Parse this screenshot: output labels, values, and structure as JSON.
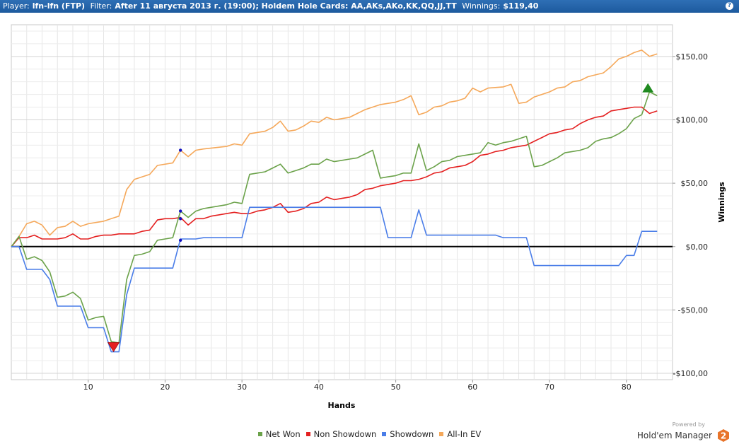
{
  "header": {
    "player_label": "Player:",
    "player_value": "lfn-lfn (FTP)",
    "filter_label": "Filter:",
    "filter_value": "After 11 августа 2013 г. (19:00); Holdem Hole Cards: AA,AKs,AKo,KK,QQ,JJ,TT",
    "winnings_label": "Winnings:",
    "winnings_value": "$119,40",
    "help": "?"
  },
  "chart_data": {
    "type": "line",
    "xlabel": "Hands",
    "ylabel": "Winnings",
    "xlim": [
      0,
      86
    ],
    "ylim": [
      -105,
      175
    ],
    "x_ticks": [
      10,
      20,
      30,
      40,
      50,
      60,
      70,
      80
    ],
    "y_ticks": [
      {
        "value": 150,
        "label": "$150,00"
      },
      {
        "value": 100,
        "label": "$100,00"
      },
      {
        "value": 50,
        "label": "$50,00"
      },
      {
        "value": 0,
        "label": "$0,00"
      },
      {
        "value": -50,
        "label": "-$50,00"
      },
      {
        "value": -100,
        "label": "-$100,00"
      }
    ],
    "grid": true,
    "legend_position": "bottom",
    "series": [
      {
        "name": "All-In EV",
        "color": "#f5a85a",
        "points": [
          [
            0,
            0
          ],
          [
            1,
            8
          ],
          [
            2,
            18
          ],
          [
            3,
            20
          ],
          [
            4,
            17
          ],
          [
            5,
            9
          ],
          [
            6,
            15
          ],
          [
            7,
            16
          ],
          [
            8,
            20
          ],
          [
            9,
            16
          ],
          [
            10,
            18
          ],
          [
            12,
            20
          ],
          [
            13,
            22
          ],
          [
            14,
            24
          ],
          [
            15,
            45
          ],
          [
            16,
            53
          ],
          [
            18,
            57
          ],
          [
            19,
            64
          ],
          [
            21,
            66
          ],
          [
            22,
            76
          ],
          [
            23,
            71
          ],
          [
            24,
            76
          ],
          [
            25,
            77
          ],
          [
            28,
            79
          ],
          [
            29,
            81
          ],
          [
            30,
            80
          ],
          [
            31,
            89
          ],
          [
            33,
            91
          ],
          [
            34,
            94
          ],
          [
            35,
            99
          ],
          [
            36,
            91
          ],
          [
            37,
            92
          ],
          [
            38,
            95
          ],
          [
            39,
            99
          ],
          [
            40,
            98
          ],
          [
            41,
            102
          ],
          [
            42,
            100
          ],
          [
            44,
            102
          ],
          [
            45,
            105
          ],
          [
            46,
            108
          ],
          [
            47,
            110
          ],
          [
            48,
            112
          ],
          [
            50,
            114
          ],
          [
            51,
            116
          ],
          [
            52,
            119
          ],
          [
            53,
            104
          ],
          [
            54,
            106
          ],
          [
            55,
            110
          ],
          [
            56,
            111
          ],
          [
            57,
            114
          ],
          [
            58,
            115
          ],
          [
            59,
            117
          ],
          [
            60,
            125
          ],
          [
            61,
            122
          ],
          [
            62,
            125
          ],
          [
            64,
            126
          ],
          [
            65,
            128
          ],
          [
            66,
            113
          ],
          [
            67,
            114
          ],
          [
            68,
            118
          ],
          [
            70,
            122
          ],
          [
            71,
            125
          ],
          [
            72,
            126
          ],
          [
            73,
            130
          ],
          [
            74,
            131
          ],
          [
            75,
            134
          ],
          [
            77,
            137
          ],
          [
            78,
            142
          ],
          [
            79,
            148
          ],
          [
            80,
            150
          ],
          [
            81,
            153
          ],
          [
            82,
            155
          ],
          [
            83,
            150
          ],
          [
            84,
            152
          ]
        ]
      },
      {
        "name": "Non Showdown",
        "color": "#e42020",
        "points": [
          [
            0,
            0
          ],
          [
            1,
            7
          ],
          [
            2,
            7
          ],
          [
            3,
            9
          ],
          [
            4,
            6
          ],
          [
            5,
            6
          ],
          [
            6,
            6
          ],
          [
            7,
            7
          ],
          [
            8,
            10
          ],
          [
            9,
            6
          ],
          [
            10,
            6
          ],
          [
            11,
            8
          ],
          [
            12,
            9
          ],
          [
            13,
            9
          ],
          [
            14,
            10
          ],
          [
            15,
            10
          ],
          [
            16,
            10
          ],
          [
            17,
            12
          ],
          [
            18,
            13
          ],
          [
            19,
            21
          ],
          [
            20,
            22
          ],
          [
            21,
            22
          ],
          [
            22,
            23
          ],
          [
            23,
            17
          ],
          [
            24,
            22
          ],
          [
            25,
            22
          ],
          [
            26,
            24
          ],
          [
            27,
            25
          ],
          [
            28,
            26
          ],
          [
            29,
            27
          ],
          [
            30,
            26
          ],
          [
            31,
            26
          ],
          [
            32,
            28
          ],
          [
            33,
            29
          ],
          [
            34,
            31
          ],
          [
            35,
            34
          ],
          [
            36,
            27
          ],
          [
            37,
            28
          ],
          [
            38,
            30
          ],
          [
            39,
            34
          ],
          [
            40,
            35
          ],
          [
            41,
            39
          ],
          [
            42,
            37
          ],
          [
            43,
            38
          ],
          [
            44,
            39
          ],
          [
            45,
            41
          ],
          [
            46,
            45
          ],
          [
            47,
            46
          ],
          [
            48,
            48
          ],
          [
            49,
            49
          ],
          [
            50,
            50
          ],
          [
            51,
            52
          ],
          [
            52,
            52
          ],
          [
            53,
            53
          ],
          [
            54,
            55
          ],
          [
            55,
            58
          ],
          [
            56,
            59
          ],
          [
            57,
            62
          ],
          [
            58,
            63
          ],
          [
            59,
            64
          ],
          [
            60,
            67
          ],
          [
            61,
            72
          ],
          [
            62,
            73
          ],
          [
            63,
            75
          ],
          [
            64,
            76
          ],
          [
            65,
            78
          ],
          [
            66,
            79
          ],
          [
            67,
            80
          ],
          [
            68,
            83
          ],
          [
            69,
            86
          ],
          [
            70,
            89
          ],
          [
            71,
            90
          ],
          [
            72,
            92
          ],
          [
            73,
            93
          ],
          [
            74,
            97
          ],
          [
            75,
            100
          ],
          [
            76,
            102
          ],
          [
            77,
            103
          ],
          [
            78,
            107
          ],
          [
            79,
            108
          ],
          [
            80,
            109
          ],
          [
            81,
            110
          ],
          [
            82,
            110
          ],
          [
            83,
            105
          ],
          [
            84,
            107
          ]
        ]
      },
      {
        "name": "Net Won",
        "color": "#6ba24a",
        "points": [
          [
            0,
            0
          ],
          [
            1,
            8
          ],
          [
            2,
            -10
          ],
          [
            3,
            -8
          ],
          [
            4,
            -11
          ],
          [
            5,
            -20
          ],
          [
            6,
            -40
          ],
          [
            7,
            -39
          ],
          [
            8,
            -36
          ],
          [
            9,
            -41
          ],
          [
            10,
            -58
          ],
          [
            11,
            -56
          ],
          [
            12,
            -55
          ],
          [
            13,
            -75
          ],
          [
            14,
            -76
          ],
          [
            15,
            -26
          ],
          [
            16,
            -7
          ],
          [
            17,
            -6
          ],
          [
            18,
            -4
          ],
          [
            19,
            5
          ],
          [
            20,
            6
          ],
          [
            21,
            7
          ],
          [
            22,
            28
          ],
          [
            23,
            23
          ],
          [
            24,
            28
          ],
          [
            25,
            30
          ],
          [
            26,
            31
          ],
          [
            28,
            33
          ],
          [
            29,
            35
          ],
          [
            30,
            34
          ],
          [
            31,
            57
          ],
          [
            32,
            58
          ],
          [
            33,
            59
          ],
          [
            34,
            62
          ],
          [
            35,
            65
          ],
          [
            36,
            58
          ],
          [
            37,
            60
          ],
          [
            38,
            62
          ],
          [
            39,
            65
          ],
          [
            40,
            65
          ],
          [
            41,
            69
          ],
          [
            42,
            67
          ],
          [
            43,
            68
          ],
          [
            44,
            69
          ],
          [
            45,
            70
          ],
          [
            46,
            73
          ],
          [
            47,
            76
          ],
          [
            48,
            54
          ],
          [
            49,
            55
          ],
          [
            50,
            56
          ],
          [
            51,
            58
          ],
          [
            52,
            58
          ],
          [
            53,
            81
          ],
          [
            54,
            60
          ],
          [
            55,
            63
          ],
          [
            56,
            67
          ],
          [
            57,
            68
          ],
          [
            58,
            71
          ],
          [
            59,
            72
          ],
          [
            60,
            73
          ],
          [
            61,
            74
          ],
          [
            62,
            82
          ],
          [
            63,
            80
          ],
          [
            64,
            82
          ],
          [
            65,
            83
          ],
          [
            66,
            85
          ],
          [
            67,
            87
          ],
          [
            68,
            63
          ],
          [
            69,
            64
          ],
          [
            70,
            67
          ],
          [
            71,
            70
          ],
          [
            72,
            74
          ],
          [
            73,
            75
          ],
          [
            74,
            76
          ],
          [
            75,
            78
          ],
          [
            76,
            83
          ],
          [
            77,
            85
          ],
          [
            78,
            86
          ],
          [
            79,
            89
          ],
          [
            80,
            93
          ],
          [
            81,
            101
          ],
          [
            82,
            104
          ],
          [
            83,
            122
          ],
          [
            84,
            119
          ]
        ]
      },
      {
        "name": "Showdown",
        "color": "#4a7de8",
        "points": [
          [
            0,
            0
          ],
          [
            1,
            0
          ],
          [
            2,
            -18
          ],
          [
            4,
            -18
          ],
          [
            5,
            -26
          ],
          [
            6,
            -47
          ],
          [
            9,
            -47
          ],
          [
            10,
            -64
          ],
          [
            12,
            -64
          ],
          [
            13,
            -83
          ],
          [
            14,
            -83
          ],
          [
            15,
            -38
          ],
          [
            16,
            -17
          ],
          [
            21,
            -17
          ],
          [
            22,
            6
          ],
          [
            24,
            6
          ],
          [
            25,
            7
          ],
          [
            30,
            7
          ],
          [
            31,
            31
          ],
          [
            48,
            31
          ],
          [
            49,
            7
          ],
          [
            52,
            7
          ],
          [
            53,
            29
          ],
          [
            54,
            9
          ],
          [
            63,
            9
          ],
          [
            64,
            7
          ],
          [
            67,
            7
          ],
          [
            68,
            -15
          ],
          [
            79,
            -15
          ],
          [
            80,
            -7
          ],
          [
            81,
            -7
          ],
          [
            82,
            12
          ],
          [
            84,
            12
          ]
        ]
      }
    ],
    "markers": {
      "high": {
        "x": 82.8,
        "y": 125,
        "color": "#1f8a1f"
      },
      "low": {
        "x": 13.3,
        "y": -79,
        "color": "#e62020"
      },
      "dots": [
        {
          "x": 22,
          "y": 76
        },
        {
          "x": 22,
          "y": 28
        },
        {
          "x": 22,
          "y": 22
        },
        {
          "x": 22,
          "y": 5
        }
      ]
    }
  },
  "footer": {
    "powered": "Powered by",
    "brand": "Hold'em Manager",
    "brand_version": "2"
  }
}
